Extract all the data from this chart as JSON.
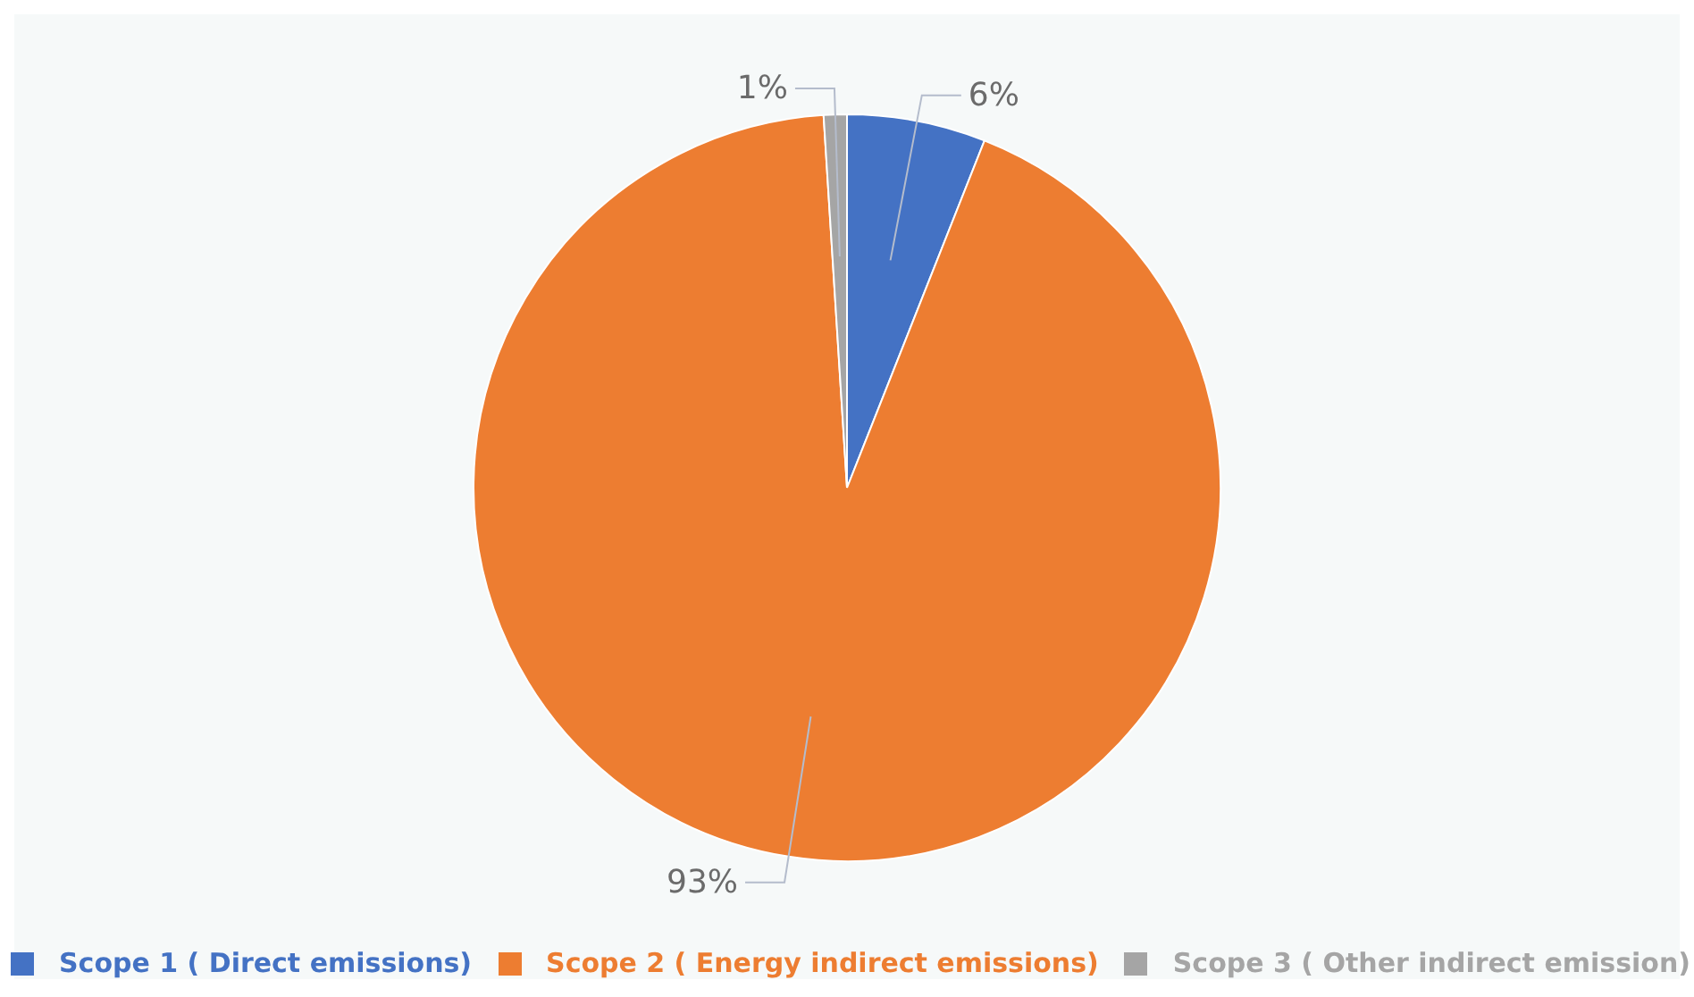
{
  "chart_data": {
    "type": "pie",
    "categories": [
      "Scope 1 ( Direct emissions)",
      "Scope 2 ( Energy indirect emissions)",
      "Scope 3 ( Other indirect emission)"
    ],
    "values": [
      6,
      93,
      1
    ],
    "colors": [
      "#4472c4",
      "#ed7d31",
      "#a5a5a5"
    ],
    "value_labels": [
      "6%",
      "93%",
      "1%"
    ],
    "legend": "bottom"
  }
}
